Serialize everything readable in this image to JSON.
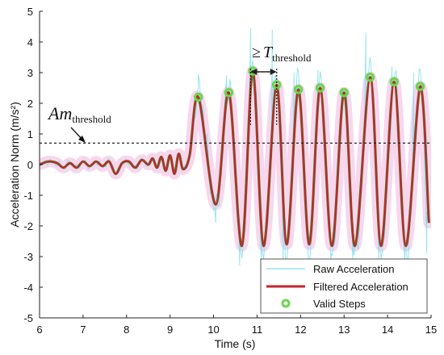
{
  "chart_data": {
    "type": "line",
    "xlabel": "Time (s)",
    "ylabel": "Acceleration Norm (m/s²)",
    "xlim": [
      6,
      15
    ],
    "ylim": [
      -5,
      5
    ],
    "x_ticks": [
      "6",
      "7",
      "8",
      "9",
      "10",
      "11",
      "12",
      "13",
      "14",
      "15"
    ],
    "y_ticks": [
      "5",
      "4",
      "3",
      "2",
      "1",
      "0",
      "-1",
      "-2",
      "-3",
      "-4",
      "-5"
    ],
    "grid": false,
    "legend_position": "bottom-right",
    "threshold": {
      "value": 0.7,
      "label_main": "Am",
      "label_sub": "threshold"
    },
    "interval_annotation": {
      "prefix": "≥",
      "symbol": "T",
      "sub": "threshold",
      "from_x": 10.85,
      "to_x": 11.45
    },
    "series": [
      {
        "name": "Raw Acceleration",
        "color": "#7fe0ee",
        "role": "raw",
        "peaks": [
          [
            9.65,
            2.5
          ],
          [
            10.3,
            2.9
          ],
          [
            10.85,
            4.45
          ],
          [
            11.35,
            4.4
          ],
          [
            11.85,
            3.0
          ],
          [
            12.4,
            3.1
          ],
          [
            12.95,
            2.5
          ],
          [
            13.5,
            4.3
          ],
          [
            14.1,
            3.2
          ],
          [
            14.6,
            3.0
          ]
        ],
        "troughs": [
          [
            10.05,
            -1.9
          ],
          [
            10.6,
            -3.3
          ],
          [
            11.1,
            -3.3
          ],
          [
            11.6,
            -3.3
          ],
          [
            12.2,
            -3.3
          ],
          [
            12.7,
            -3.3
          ],
          [
            13.2,
            -3.2
          ],
          [
            13.8,
            -3.3
          ],
          [
            14.4,
            -3.3
          ],
          [
            14.9,
            -2.9
          ]
        ]
      },
      {
        "name": "Filtered Acceleration",
        "color": "#c0272d",
        "role": "filtered",
        "x": [
          6.0,
          6.2,
          6.4,
          6.55,
          6.7,
          6.85,
          7.0,
          7.15,
          7.3,
          7.45,
          7.6,
          7.75,
          7.9,
          8.05,
          8.2,
          8.35,
          8.5,
          8.6,
          8.7,
          8.8,
          8.9,
          9.0,
          9.1,
          9.2,
          9.3,
          9.45,
          9.65,
          10.05,
          10.35,
          10.65,
          10.9,
          11.15,
          11.45,
          11.68,
          11.95,
          12.2,
          12.45,
          12.72,
          13.0,
          13.25,
          13.6,
          13.85,
          14.15,
          14.42,
          14.75,
          14.95
        ],
        "y": [
          0.0,
          0.1,
          0.05,
          -0.1,
          0.05,
          -0.1,
          0.1,
          -0.05,
          0.1,
          -0.05,
          0.1,
          -0.3,
          0.05,
          0.1,
          -0.1,
          0.15,
          0.0,
          0.2,
          -0.1,
          0.25,
          -0.2,
          0.3,
          -0.3,
          0.35,
          -0.15,
          0.3,
          2.2,
          -1.3,
          2.35,
          -2.65,
          3.05,
          -2.65,
          2.6,
          -2.6,
          2.45,
          -2.6,
          2.5,
          -2.65,
          2.35,
          -2.65,
          2.85,
          -2.65,
          2.7,
          -2.65,
          2.55,
          -1.9
        ]
      },
      {
        "name": "Valid Steps",
        "color": "#6bd64b",
        "role": "markers",
        "x": [
          9.65,
          10.35,
          10.9,
          11.45,
          11.95,
          12.45,
          13.0,
          13.6,
          14.15,
          14.75
        ],
        "y": [
          2.2,
          2.35,
          3.05,
          2.6,
          2.45,
          2.5,
          2.35,
          2.85,
          2.7,
          2.55
        ]
      }
    ],
    "envelope_color": "#f4c8e8"
  }
}
